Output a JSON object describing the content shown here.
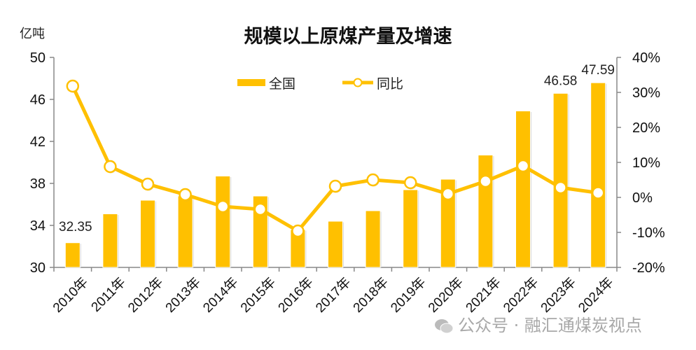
{
  "chart_data": {
    "type": "bar+line",
    "title": "规模以上原煤产量及增速",
    "ylabel": "亿吨",
    "ylabel_right": "",
    "xlabel": "",
    "categories": [
      "2010年",
      "2011年",
      "2012年",
      "2013年",
      "2014年",
      "2015年",
      "2016年",
      "2017年",
      "2018年",
      "2019年",
      "2020年",
      "2021年",
      "2022年",
      "2023年",
      "2024年"
    ],
    "series": [
      {
        "name": "全国",
        "type": "bar",
        "axis": "left",
        "color": "#FFC000",
        "values": [
          32.35,
          35.1,
          36.4,
          36.8,
          38.7,
          36.8,
          33.6,
          34.4,
          35.4,
          37.4,
          38.4,
          40.7,
          44.9,
          46.58,
          47.59
        ]
      },
      {
        "name": "同比",
        "type": "line",
        "axis": "right",
        "unit": "%",
        "color": "#FFC000",
        "values": [
          31.8,
          8.8,
          3.8,
          0.8,
          -2.6,
          -3.4,
          -9.6,
          3.2,
          5.0,
          4.2,
          1.0,
          4.6,
          9.0,
          2.8,
          1.3
        ]
      }
    ],
    "data_labels": [
      {
        "category": "2010年",
        "text": "32.35"
      },
      {
        "category": "2023年",
        "text": "46.58"
      },
      {
        "category": "2024年",
        "text": "47.59"
      }
    ],
    "ylim": [
      30,
      50
    ],
    "yticks": [
      "30",
      "34",
      "38",
      "42",
      "46",
      "50"
    ],
    "ylim_right": [
      -20,
      40
    ],
    "yticks_right": [
      "-20%",
      "-10%",
      "0%",
      "10%",
      "20%",
      "30%",
      "40%"
    ],
    "legend": {
      "position": "top-center",
      "entries": [
        "全国",
        "同比"
      ]
    },
    "grid": false
  },
  "watermark": "公众号 · 融汇通煤炭视点"
}
